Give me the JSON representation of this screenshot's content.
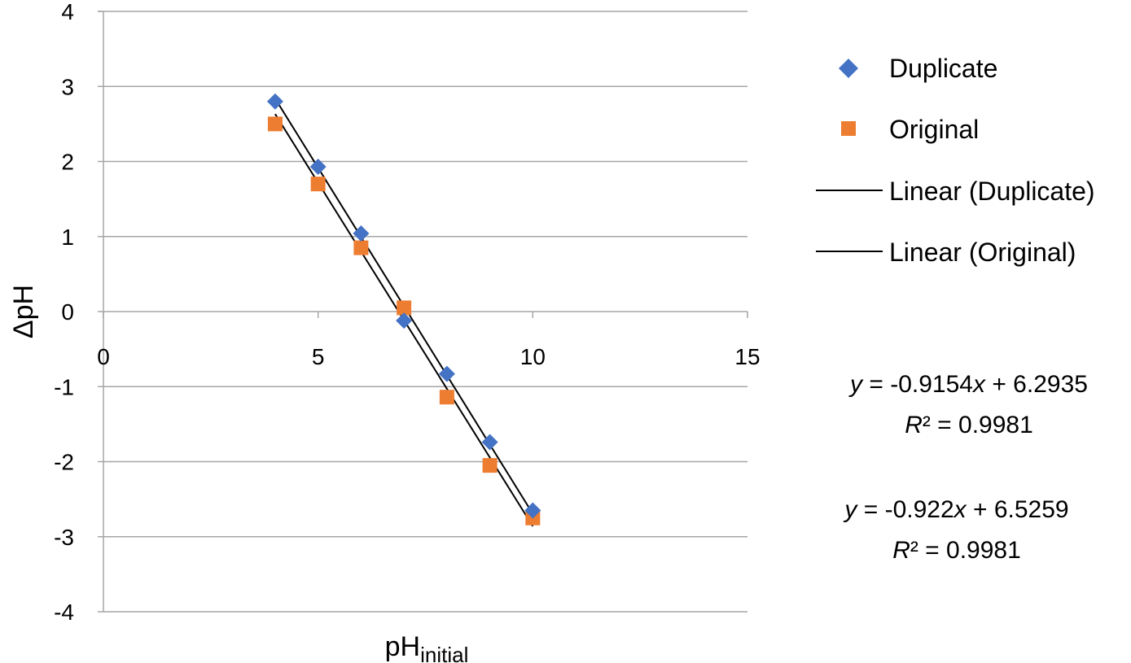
{
  "chart_data": {
    "type": "scatter",
    "xlabel_main": "pH",
    "xlabel_sub": "initial",
    "ylabel": "ΔpH",
    "xlim": [
      0,
      15
    ],
    "ylim": [
      -4,
      4
    ],
    "x_ticks": [
      0,
      5,
      10,
      15
    ],
    "y_ticks": [
      -4,
      -3,
      -2,
      -1,
      0,
      1,
      2,
      3,
      4
    ],
    "grid": "horizontal",
    "legend_position": "right",
    "series": [
      {
        "name": "Duplicate",
        "marker": "diamond",
        "color": "#4472C4",
        "x": [
          4,
          5,
          6,
          7,
          8,
          9,
          10
        ],
        "y": [
          2.8,
          1.93,
          1.04,
          -0.12,
          -0.83,
          -1.74,
          -2.65
        ]
      },
      {
        "name": "Original",
        "marker": "square",
        "color": "#ED7D31",
        "x": [
          4,
          5,
          6,
          7,
          8,
          9,
          10
        ],
        "y": [
          2.5,
          1.7,
          0.85,
          0.05,
          -1.14,
          -2.05,
          -2.75
        ]
      }
    ],
    "trendlines": [
      {
        "name": "Linear (Duplicate)",
        "color": "#000000",
        "slope": -0.922,
        "intercept": 6.5259,
        "x_range": [
          4,
          10
        ]
      },
      {
        "name": "Linear (Original)",
        "color": "#000000",
        "slope": -0.9154,
        "intercept": 6.2935,
        "x_range": [
          4,
          10
        ]
      }
    ],
    "annotations": [
      {
        "y_label": "y",
        "x_label": "x",
        "equation_start": " = -0.9154",
        "equation_end": " + 6.2935",
        "r2_label": "R",
        "r2_value": "² = 0.9981"
      },
      {
        "y_label": "y",
        "x_label": "x",
        "equation_start": " = -0.922",
        "equation_end": " + 6.5259",
        "r2_label": "R",
        "r2_value": "² = 0.9981"
      }
    ]
  }
}
